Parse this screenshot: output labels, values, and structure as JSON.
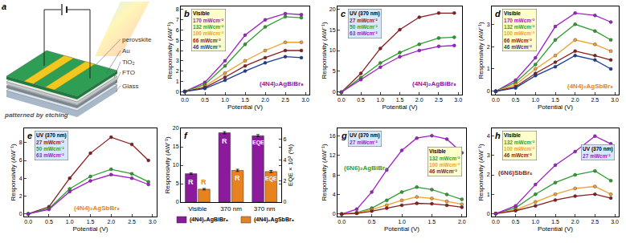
{
  "diagram": {
    "label": "a",
    "layers": [
      "perovskite",
      "Au",
      "TiO₂",
      "FTO",
      "Glass"
    ],
    "note": "patterned by etching"
  },
  "chart_data": [
    {
      "label": "b",
      "type": "line",
      "title": "(4N4)₂AgBiBr₈",
      "x_label": "Potential (V)",
      "y_label": "Responsivity (AW⁻¹)",
      "x": [
        0,
        0.5,
        1.0,
        1.5,
        2.0,
        2.5,
        2.9
      ],
      "xlim": [
        -0.1,
        3.1
      ],
      "xticks": [
        {
          "value": 0,
          "label": "0.0"
        },
        {
          "value": 0.5,
          "label": "0.5"
        },
        {
          "value": 1,
          "label": "1.0"
        },
        {
          "value": 1.5,
          "label": "1.5"
        },
        {
          "value": 2,
          "label": "2.0"
        },
        {
          "value": 2.5,
          "label": "2.5"
        },
        {
          "value": 3,
          "label": "3.0"
        }
      ],
      "ylim": [
        -0.3,
        8.3
      ],
      "yticks": [
        0,
        1,
        2,
        3,
        4,
        5,
        6,
        7,
        8
      ],
      "grid": false,
      "legend": "upper left",
      "series": [
        {
          "name": "170 mWcm⁻²",
          "group": "Visible",
          "color": "#a020c8",
          "values": [
            0,
            0.9,
            3.0,
            5.5,
            7.0,
            7.6,
            7.5
          ]
        },
        {
          "name": "132 mWcm⁻²",
          "group": "Visible",
          "color": "#2e9e2e",
          "values": [
            0,
            0.7,
            2.5,
            4.6,
            6.3,
            7.3,
            7.2
          ]
        },
        {
          "name": "100 mWcm⁻²",
          "group": "Visible",
          "color": "#f0a030",
          "values": [
            0,
            0.5,
            1.8,
            3.0,
            4.0,
            4.8,
            4.8
          ]
        },
        {
          "name": "66 mWcm⁻²",
          "group": "Visible",
          "color": "#8b1c1c",
          "values": [
            0,
            0.4,
            1.4,
            2.5,
            3.3,
            4.0,
            4.0
          ]
        },
        {
          "name": "46 mWcm⁻²",
          "group": "Visible",
          "color": "#1c3c9c",
          "values": [
            0,
            0.3,
            1.1,
            2.0,
            2.8,
            3.4,
            3.3
          ]
        }
      ]
    },
    {
      "label": "c",
      "type": "line",
      "title": "(4N4)₂AgBiBr₈",
      "x_label": "Potential (V)",
      "y_label": "Responsivity (AW⁻¹)",
      "x": [
        0,
        0.5,
        1.0,
        1.5,
        2.0,
        2.5,
        2.9
      ],
      "xlim": [
        -0.1,
        3.1
      ],
      "xticks": [
        {
          "value": 0,
          "label": "0.0"
        },
        {
          "value": 0.5,
          "label": "0.5"
        },
        {
          "value": 1,
          "label": "1.0"
        },
        {
          "value": 1.5,
          "label": "1.5"
        },
        {
          "value": 2,
          "label": "2.0"
        },
        {
          "value": 2.5,
          "label": "2.5"
        },
        {
          "value": 3,
          "label": "3.0"
        }
      ],
      "ylim": [
        -0.6,
        20.6
      ],
      "yticks": [
        0,
        5,
        10,
        15,
        20
      ],
      "grid": false,
      "legend": "upper left",
      "series": [
        {
          "name": "27 mWcm⁻²",
          "group": "UV (370 nm)",
          "color": "#8b1c1c",
          "values": [
            0,
            4.5,
            10.5,
            15.0,
            18.0,
            19.0,
            19.0
          ]
        },
        {
          "name": "50 mWcm⁻²",
          "group": "UV (370 nm)",
          "color": "#2e9e2e",
          "values": [
            0,
            3.5,
            7.0,
            9.5,
            11.5,
            13.0,
            13.2
          ]
        },
        {
          "name": "63 mWcm⁻²",
          "group": "UV (370 nm)",
          "color": "#a020c8",
          "values": [
            0,
            3.0,
            6.0,
            8.5,
            10.0,
            11.0,
            11.2
          ]
        }
      ]
    },
    {
      "label": "d",
      "type": "line",
      "title": "(4N4)₂AgSbBr₈",
      "x_label": "Potential (V)",
      "y_label": "Responsivity (AW⁻¹)",
      "x": [
        0,
        0.5,
        1.0,
        1.5,
        2.0,
        2.5,
        2.9
      ],
      "xlim": [
        -0.1,
        3.1
      ],
      "xticks": [
        {
          "value": 0,
          "label": "0.0"
        },
        {
          "value": 0.5,
          "label": "0.5"
        },
        {
          "value": 1,
          "label": "1.0"
        },
        {
          "value": 1.5,
          "label": "1.5"
        },
        {
          "value": 2,
          "label": "2.0"
        },
        {
          "value": 2.5,
          "label": "2.5"
        },
        {
          "value": 3,
          "label": "3.0"
        }
      ],
      "ylim": [
        -0.15,
        3.8
      ],
      "yticks": [
        0,
        1,
        2,
        3
      ],
      "grid": false,
      "legend": "upper left",
      "series": [
        {
          "name": "170 mWcm⁻²",
          "group": "Visible",
          "color": "#a020c8",
          "values": [
            0,
            0.5,
            1.5,
            2.9,
            3.5,
            3.4,
            3.1
          ]
        },
        {
          "name": "132 mWcm⁻²",
          "group": "Visible",
          "color": "#2e9e2e",
          "values": [
            0,
            0.4,
            1.2,
            2.3,
            3.0,
            2.7,
            2.3
          ]
        },
        {
          "name": "100 mWcm⁻²",
          "group": "Visible",
          "color": "#f0a030",
          "values": [
            0,
            0.3,
            1.0,
            1.6,
            2.3,
            2.1,
            1.8
          ]
        },
        {
          "name": "66 mWcm⁻²",
          "group": "Visible",
          "color": "#8b1c1c",
          "values": [
            0,
            0.2,
            0.8,
            1.3,
            1.8,
            1.6,
            1.4
          ]
        },
        {
          "name": "46 mWcm⁻²",
          "group": "Visible",
          "color": "#1c3c9c",
          "values": [
            0,
            0.15,
            0.7,
            1.1,
            1.6,
            1.4,
            1.0
          ]
        }
      ]
    },
    {
      "label": "e",
      "type": "line",
      "title": "(4N4)₂AgSbBr₈",
      "x_label": "Potential (V)",
      "y_label": "Responsivity (AW⁻¹)",
      "x": [
        0,
        0.5,
        1.0,
        1.5,
        2.0,
        2.5,
        2.9
      ],
      "xlim": [
        -0.1,
        3.1
      ],
      "xticks": [
        {
          "value": 0,
          "label": "0.0"
        },
        {
          "value": 0.5,
          "label": "0.5"
        },
        {
          "value": 1,
          "label": "1.0"
        },
        {
          "value": 1.5,
          "label": "1.5"
        },
        {
          "value": 2,
          "label": "2.0"
        },
        {
          "value": 2.5,
          "label": "2.5"
        },
        {
          "value": 3,
          "label": "3.0"
        }
      ],
      "ylim": [
        -0.3,
        9.6
      ],
      "yticks": [
        0,
        2,
        4,
        6,
        8
      ],
      "grid": false,
      "legend": "upper left",
      "series": [
        {
          "name": "27 mWcm⁻²",
          "group": "UV (370 nm)",
          "color": "#8b1c1c",
          "values": [
            0,
            0.8,
            4.0,
            6.8,
            8.6,
            7.8,
            6.0
          ]
        },
        {
          "name": "50 mWcm⁻²",
          "group": "UV (370 nm)",
          "color": "#2e9e2e",
          "values": [
            0,
            0.6,
            2.8,
            4.2,
            5.0,
            4.5,
            3.6
          ]
        },
        {
          "name": "63 mWcm⁻²",
          "group": "UV (370 nm)",
          "color": "#a020c8",
          "values": [
            0,
            0.5,
            2.5,
            3.7,
            4.4,
            4.0,
            3.3
          ]
        }
      ]
    },
    {
      "label": "f",
      "type": "bar",
      "y_label": "Responsivity (AW⁻¹)",
      "y2_label": "EQE × 10³ (%)",
      "categories": [
        "Visible",
        "370 nm",
        "370 nm"
      ],
      "ylim": [
        0,
        20
      ],
      "yticks": [
        0,
        5,
        10,
        15,
        20
      ],
      "y2lim": [
        0,
        7
      ],
      "y2ticks": [
        0,
        2,
        4,
        6
      ],
      "grid": false,
      "legend": "lower center",
      "series": [
        {
          "name": "(4N4)₂AgBiBr₈",
          "color": "#8b1a9c",
          "values": [
            7.7,
            18.8,
            null
          ],
          "errors": [
            0.2,
            0.3,
            null
          ],
          "labels": [
            "R",
            "R",
            null
          ]
        },
        {
          "name": "(4N4)₂AgSbBr₈",
          "color": "#e8821e",
          "values": [
            3.5,
            8.6,
            null
          ],
          "errors": [
            0.2,
            0.3,
            null
          ],
          "labels": [
            "R",
            "R",
            null
          ]
        },
        {
          "name": "(4N4)₂AgBiBr₈",
          "color": "#8b1a9c",
          "axis": "y2",
          "values": [
            null,
            null,
            6.3
          ],
          "errors": [
            null,
            null,
            0.1
          ],
          "labels": [
            null,
            null,
            "EQE"
          ]
        },
        {
          "name": "(4N4)₂AgSbBr₈",
          "color": "#e8821e",
          "axis": "y2",
          "values": [
            null,
            null,
            2.9
          ],
          "errors": [
            null,
            null,
            0.1
          ],
          "labels": [
            null,
            null,
            "EQE"
          ]
        }
      ]
    },
    {
      "label": "g",
      "type": "line",
      "title": "(6N6)₂AgBiBr₈",
      "x_label": "Potential (V)",
      "y_label": "Responsivity (AW⁻¹)",
      "x": [
        0,
        0.25,
        0.5,
        0.75,
        1.0,
        1.25,
        1.5,
        1.75,
        2.0
      ],
      "xlim": [
        -0.07,
        2.07
      ],
      "xticks": [
        {
          "value": 0,
          "label": "0.0"
        },
        {
          "value": 0.5,
          "label": "0.5"
        },
        {
          "value": 1,
          "label": "1.0"
        },
        {
          "value": 1.5,
          "label": "1.5"
        },
        {
          "value": 2,
          "label": "2.0"
        }
      ],
      "ylim": [
        -0.5,
        17.5
      ],
      "yticks": [
        0,
        4,
        8,
        12,
        16
      ],
      "grid": false,
      "legend": "upper left",
      "series": [
        {
          "name": "27 mWcm⁻²",
          "group": "UV (370 nm)",
          "color": "#a020c8",
          "values": [
            0,
            1.0,
            4.5,
            9.0,
            13.0,
            15.5,
            16.0,
            15.3,
            12.5
          ]
        },
        {
          "name": "132 mWcm⁻²",
          "group": "Visible",
          "color": "#2e9e2e",
          "values": [
            0,
            0.3,
            1.2,
            2.8,
            4.5,
            5.5,
            5.0,
            4.0,
            3.0
          ]
        },
        {
          "name": "100 mWcm⁻²",
          "group": "Visible",
          "color": "#f0a030",
          "values": [
            0,
            0.2,
            0.9,
            1.8,
            2.8,
            3.5,
            3.2,
            2.6,
            2.0
          ]
        },
        {
          "name": "46 mWcm⁻²",
          "group": "Visible",
          "color": "#8b1c1c",
          "values": [
            0,
            0.15,
            0.6,
            1.2,
            1.8,
            2.2,
            2.1,
            1.8,
            1.4
          ]
        }
      ]
    },
    {
      "label": "h",
      "type": "line",
      "title": "(6N6)SbBr₆",
      "x_label": "Potential (V)",
      "y_label": "Responsivity (AW⁻¹)",
      "x": [
        0,
        0.5,
        1.0,
        1.5,
        2.0,
        2.5,
        2.9
      ],
      "xlim": [
        -0.1,
        3.1
      ],
      "xticks": [
        {
          "value": 0,
          "label": "0.0"
        },
        {
          "value": 0.5,
          "label": "0.5"
        },
        {
          "value": 1,
          "label": "1.0"
        },
        {
          "value": 1.5,
          "label": "1.5"
        },
        {
          "value": 2,
          "label": "2.0"
        },
        {
          "value": 2.5,
          "label": "2.5"
        },
        {
          "value": 3,
          "label": "3.0"
        }
      ],
      "ylim": [
        -0.15,
        4.4
      ],
      "yticks": [
        0,
        1,
        2,
        3,
        4
      ],
      "grid": false,
      "legend": "upper left",
      "series": [
        {
          "name": "132 mWcm⁻²",
          "group": "Visible",
          "color": "#2e9e2e",
          "values": [
            0,
            0.3,
            1.0,
            1.6,
            2.0,
            2.2,
            1.7
          ]
        },
        {
          "name": "100 mWcm⁻²",
          "group": "Visible",
          "color": "#f0a030",
          "values": [
            0,
            0.2,
            0.6,
            1.0,
            1.3,
            1.4,
            1.0
          ]
        },
        {
          "name": "46 mWcm⁻²",
          "group": "Visible",
          "color": "#8b1c1c",
          "values": [
            0,
            0.15,
            0.4,
            0.7,
            0.9,
            1.0,
            0.8
          ]
        },
        {
          "name": "27 mWcm⁻²",
          "group": "UV (370 nm)",
          "color": "#a020c8",
          "values": [
            0,
            0.4,
            1.5,
            2.5,
            3.2,
            4.0,
            3.6
          ]
        }
      ]
    }
  ]
}
